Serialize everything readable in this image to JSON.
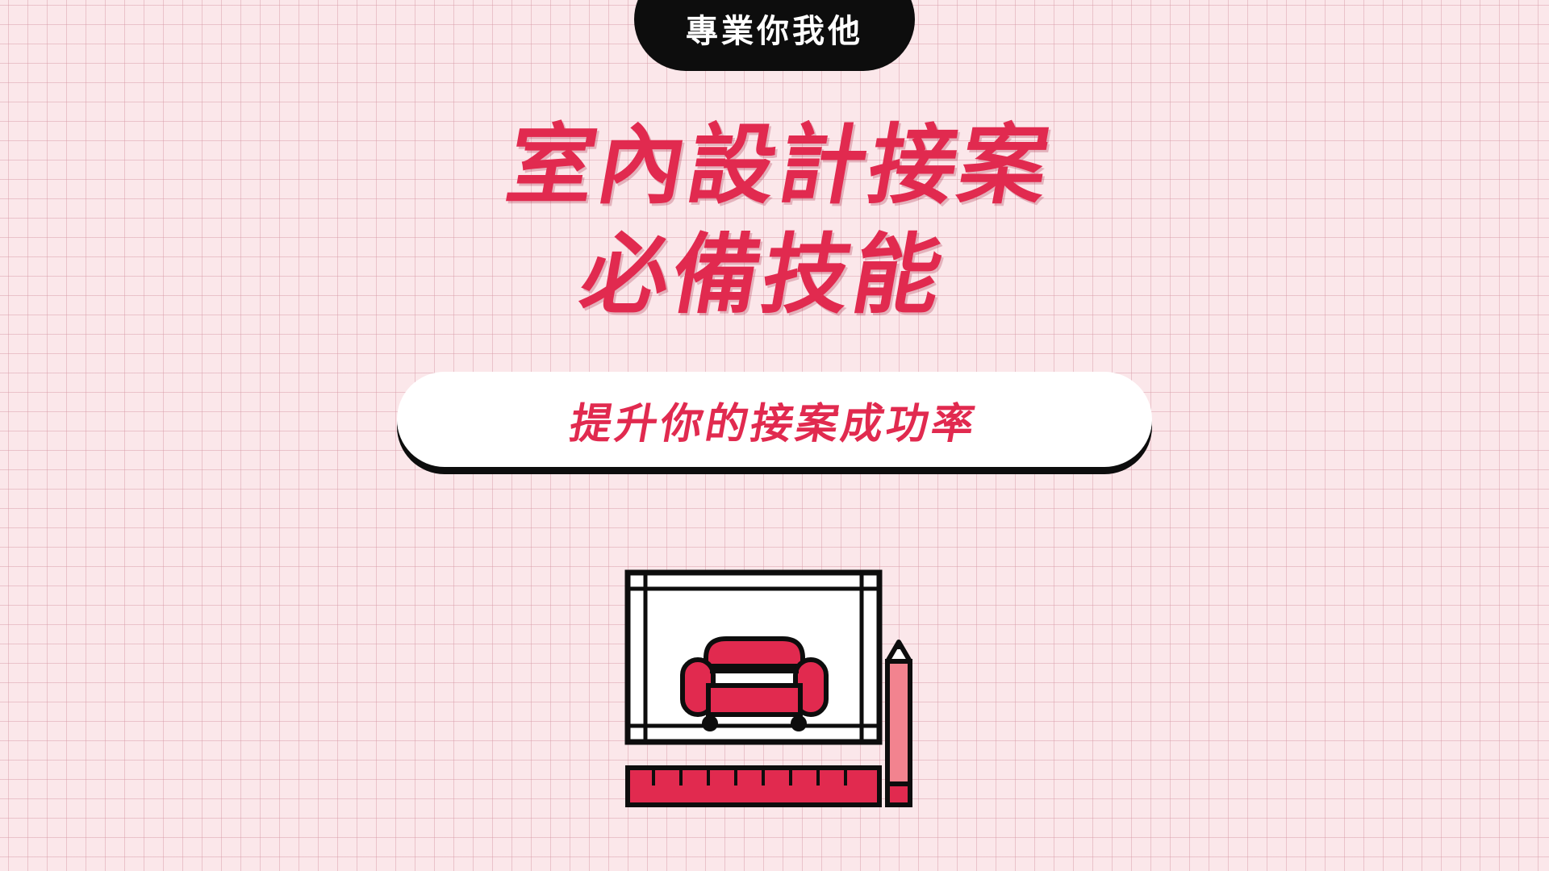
{
  "brand": {
    "label": "專業你我他"
  },
  "headline": {
    "line1": "室內設計接案",
    "line2": "必備技能"
  },
  "subtitle": {
    "text": "提升你的接案成功率"
  },
  "colors": {
    "background": "#fbe7ea",
    "accent": "#e12a4f",
    "dark": "#0d0d0d",
    "pencil_body": "#f2838f"
  },
  "illustration": {
    "icons": [
      "blueprint-icon",
      "sofa-icon",
      "pencil-icon",
      "ruler-icon"
    ]
  }
}
